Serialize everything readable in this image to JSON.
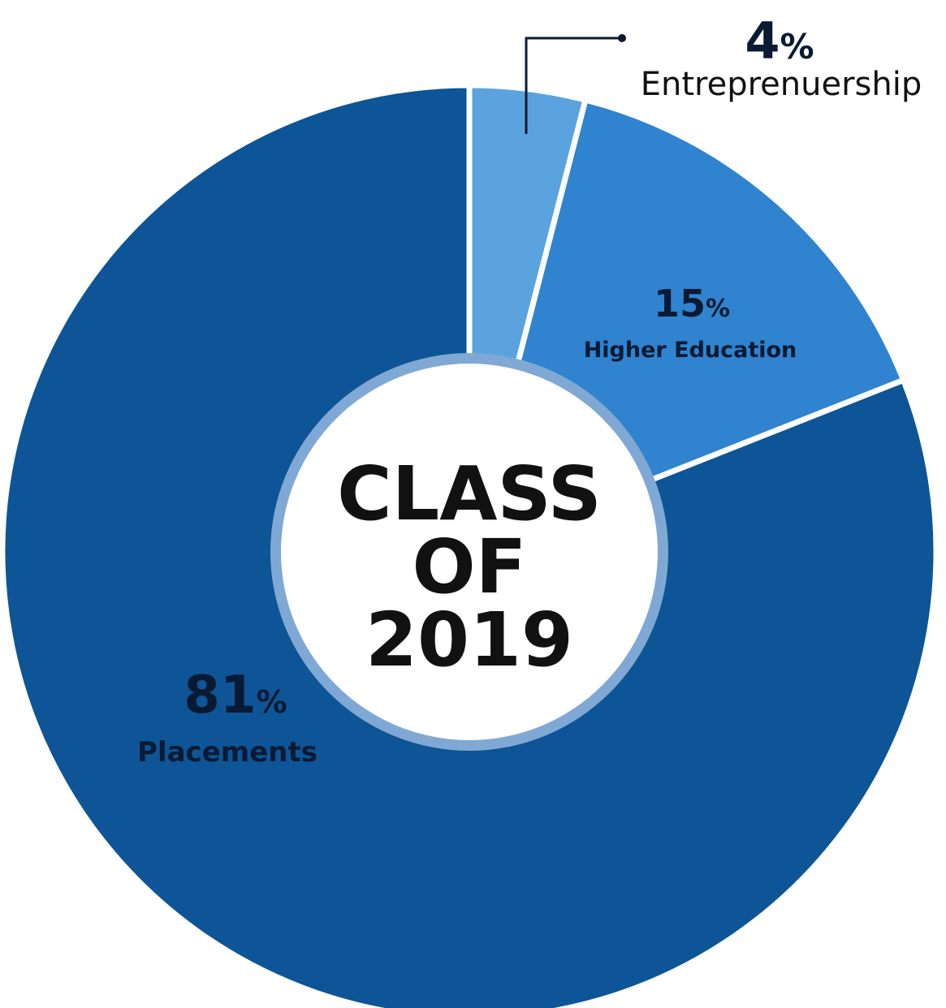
{
  "chart_data": {
    "type": "pie",
    "center_label": [
      "CLASS",
      "OF",
      "2019"
    ],
    "slices": [
      {
        "label": "Entreprenuership",
        "value": 4,
        "display": "4",
        "unit": "%",
        "color": "#5aa3df"
      },
      {
        "label": "Higher Education",
        "value": 15,
        "display": "15",
        "unit": "%",
        "color": "#2f83cf"
      },
      {
        "label": "Placements",
        "value": 81,
        "display": "81",
        "unit": "%",
        "color": "#0d5596"
      }
    ]
  }
}
